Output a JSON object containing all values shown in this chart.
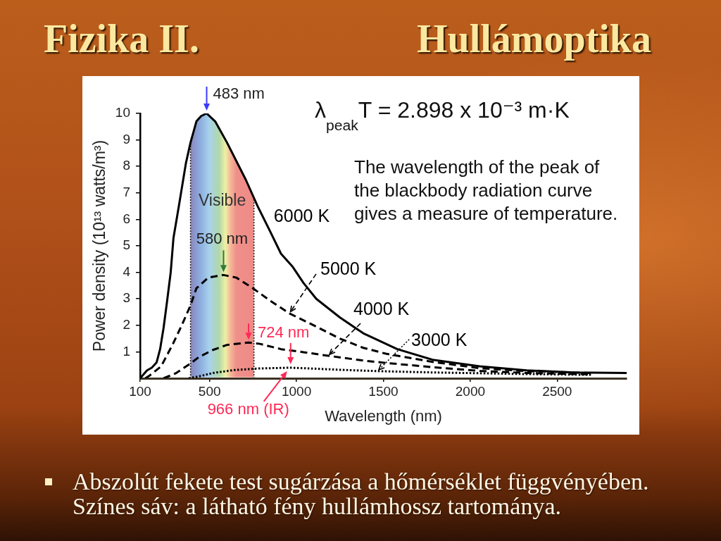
{
  "chart_data": {
    "type": "line",
    "title": "Fizika II.",
    "subtitle": "Hullámoptika",
    "xlabel": "Wavelength (nm)",
    "ylabel": "Power density (10¹³ watts/m³)",
    "xlim": [
      100,
      2900
    ],
    "xticks": [
      100,
      500,
      1000,
      1500,
      2000,
      2500
    ],
    "ylim": [
      0,
      10
    ],
    "yticks": [
      1,
      2,
      3,
      4,
      5,
      6,
      7,
      8,
      9,
      10
    ],
    "bands": [
      {
        "axis": "x",
        "from": 390,
        "to": 755,
        "label": "Visible"
      }
    ],
    "ref_lines": [
      {
        "axis": "x",
        "value": 390,
        "line_style": "dotted",
        "color": "#222222"
      },
      {
        "axis": "x",
        "value": 755,
        "line_style": "dotted",
        "color": "#222222"
      }
    ],
    "series": [
      {
        "name": "6000 K",
        "color": "#000000",
        "line_style": "solid",
        "x": [
          100,
          140,
          167,
          195,
          215,
          235,
          255,
          276,
          292,
          323,
          363,
          390,
          424,
          451,
          483,
          532,
          600,
          708,
          776,
          844,
          911,
          979,
          1040,
          1114,
          1249,
          1384,
          1580,
          1783,
          2054,
          2324,
          2595,
          2900
        ],
        "values": [
          0,
          0.3,
          0.4,
          0.6,
          1.1,
          1.9,
          2.9,
          4,
          5.3,
          6.5,
          8.1,
          8.9,
          9.7,
          9.9,
          10,
          9.7,
          8.9,
          7.5,
          6.5,
          5.6,
          4.7,
          4.2,
          3.6,
          3,
          2.3,
          1.7,
          1.1,
          0.7,
          0.45,
          0.3,
          0.22,
          0.2
        ]
      },
      {
        "name": "5000 K",
        "color": "#000000",
        "line_style": "dashed",
        "x": [
          130,
          154,
          221,
          289,
          343,
          390,
          424,
          492,
          580,
          654,
          749,
          844,
          959,
          1114,
          1249,
          1384,
          1513,
          1783,
          2054,
          2324,
          2700
        ],
        "values": [
          0,
          0.1,
          0.45,
          1.3,
          2.05,
          2.75,
          3.4,
          3.8,
          3.9,
          3.8,
          3.4,
          2.95,
          2.45,
          1.95,
          1.5,
          1.15,
          0.93,
          0.62,
          0.38,
          0.27,
          0.2
        ]
      },
      {
        "name": "4000 K",
        "color": "#000000",
        "line_style": "dashed",
        "x": [
          235,
          303,
          384,
          438,
          519,
          600,
          695,
          724,
          789,
          911,
          1046,
          1182,
          1384,
          1513,
          1783,
          2054,
          2324,
          2700
        ],
        "values": [
          0,
          0.18,
          0.53,
          0.8,
          1.07,
          1.26,
          1.33,
          1.35,
          1.3,
          1.1,
          0.98,
          0.85,
          0.67,
          0.58,
          0.42,
          0.28,
          0.2,
          0.15
        ]
      },
      {
        "name": "3000 K",
        "color": "#000000",
        "line_style": "dotted",
        "x": [
          380,
          451,
          519,
          641,
          780,
          966,
          1114,
          1250,
          1466,
          1783,
          2324,
          2700
        ],
        "values": [
          0,
          0.09,
          0.2,
          0.31,
          0.37,
          0.4,
          0.36,
          0.32,
          0.27,
          0.22,
          0.16,
          0.13
        ]
      }
    ],
    "annotations": [
      {
        "text": "483 nm",
        "x": 483,
        "y": 10
      },
      {
        "text": "580 nm",
        "x": 580,
        "y": 3.9
      },
      {
        "text": "724 nm",
        "x": 724,
        "y": 1.35
      },
      {
        "text": "966 nm (IR)",
        "x": 966,
        "y": 0.4
      },
      "λ$_{peak}$T = 2.898 x 10⁻³ m·K",
      "The wavelength of the peak of\nthe blackbody radiation curve\ngives a measure of temperature.",
      "Abszolút fekete test sugárzása a hőmérséklet függvényében.\nSzínes sáv: a látható fény hullámhossz tartománya."
    ]
  }
}
